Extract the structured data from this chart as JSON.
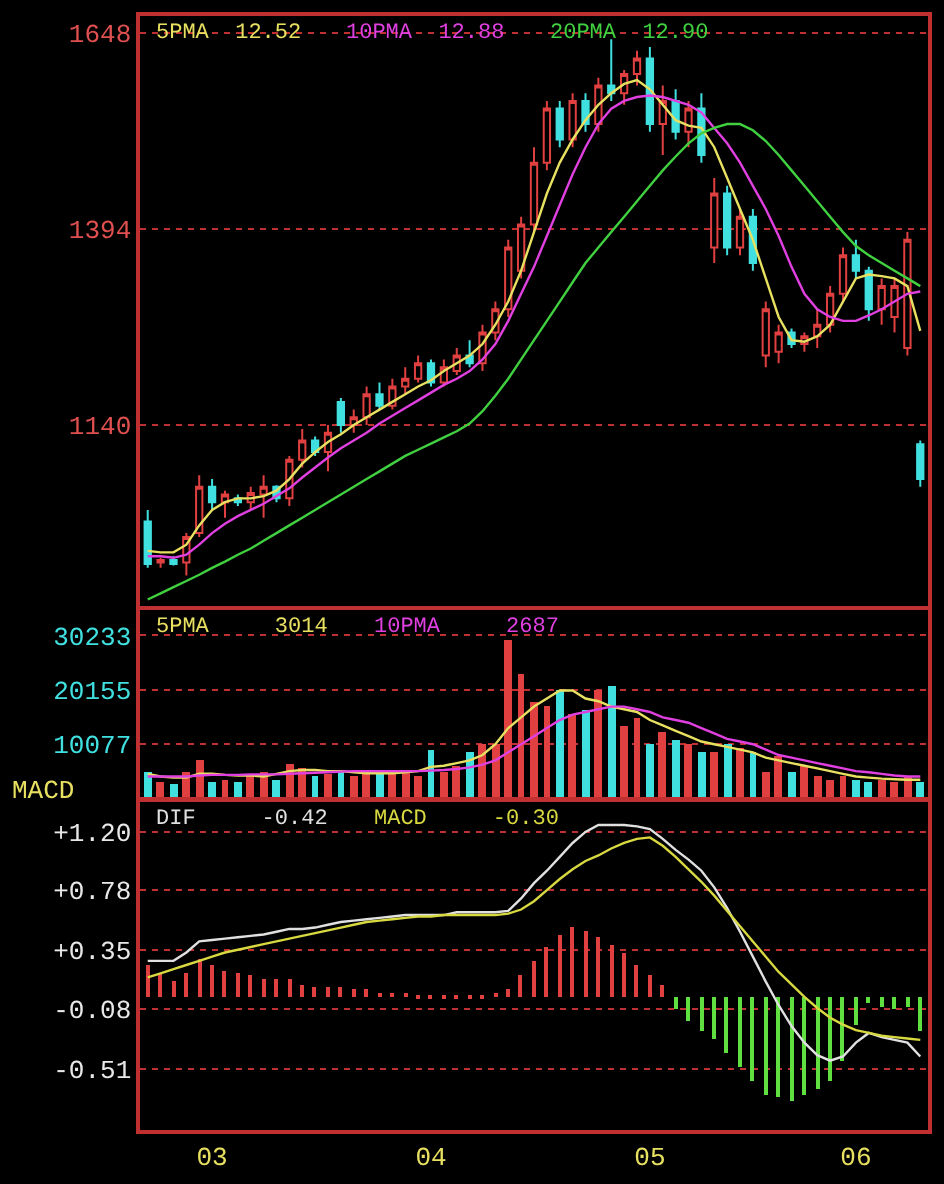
{
  "chart_data": [
    {
      "type": "candlestick",
      "categories": [
        null,
        null,
        null,
        null,
        null,
        "03",
        null,
        null,
        null,
        null,
        null,
        null,
        null,
        null,
        null,
        null,
        null,
        null,
        null,
        null,
        null,
        null,
        "04",
        null,
        null,
        null,
        null,
        null,
        null,
        null,
        null,
        null,
        null,
        null,
        null,
        null,
        null,
        null,
        null,
        "05",
        null,
        null,
        null,
        null,
        null,
        null,
        null,
        null,
        null,
        null,
        null,
        null,
        null,
        null,
        null,
        "06",
        null,
        null,
        null,
        null,
        null
      ],
      "ohlc": [
        [
          1015,
          1030,
          955,
          960
        ],
        [
          962,
          968,
          955,
          965
        ],
        [
          965,
          970,
          958,
          960
        ],
        [
          962,
          1000,
          945,
          995
        ],
        [
          1000,
          1075,
          995,
          1060
        ],
        [
          1060,
          1070,
          1030,
          1040
        ],
        [
          1040,
          1055,
          1020,
          1050
        ],
        [
          1045,
          1050,
          1035,
          1040
        ],
        [
          1040,
          1060,
          1030,
          1052
        ],
        [
          1050,
          1075,
          1020,
          1060
        ],
        [
          1060,
          1062,
          1040,
          1045
        ],
        [
          1045,
          1100,
          1035,
          1095
        ],
        [
          1095,
          1135,
          1085,
          1120
        ],
        [
          1120,
          1125,
          1100,
          1105
        ],
        [
          1105,
          1140,
          1080,
          1130
        ],
        [
          1170,
          1175,
          1130,
          1140
        ],
        [
          1140,
          1160,
          1130,
          1150
        ],
        [
          1150,
          1190,
          1140,
          1180
        ],
        [
          1180,
          1195,
          1160,
          1165
        ],
        [
          1165,
          1200,
          1160,
          1190
        ],
        [
          1190,
          1215,
          1180,
          1200
        ],
        [
          1200,
          1230,
          1195,
          1220
        ],
        [
          1220,
          1225,
          1190,
          1195
        ],
        [
          1195,
          1225,
          1190,
          1215
        ],
        [
          1210,
          1240,
          1205,
          1230
        ],
        [
          1230,
          1250,
          1215,
          1220
        ],
        [
          1220,
          1270,
          1210,
          1260
        ],
        [
          1260,
          1300,
          1250,
          1290
        ],
        [
          1290,
          1380,
          1280,
          1370
        ],
        [
          1340,
          1410,
          1330,
          1400
        ],
        [
          1400,
          1500,
          1390,
          1480
        ],
        [
          1480,
          1560,
          1470,
          1550
        ],
        [
          1550,
          1560,
          1500,
          1510
        ],
        [
          1510,
          1570,
          1500,
          1560
        ],
        [
          1560,
          1570,
          1520,
          1530
        ],
        [
          1530,
          1590,
          1520,
          1580
        ],
        [
          1580,
          1640,
          1560,
          1570
        ],
        [
          1570,
          1600,
          1555,
          1595
        ],
        [
          1595,
          1625,
          1580,
          1615
        ],
        [
          1615,
          1630,
          1520,
          1530
        ],
        [
          1530,
          1580,
          1490,
          1560
        ],
        [
          1560,
          1575,
          1510,
          1520
        ],
        [
          1520,
          1560,
          1500,
          1550
        ],
        [
          1550,
          1570,
          1480,
          1490
        ],
        [
          1370,
          1460,
          1350,
          1440
        ],
        [
          1440,
          1450,
          1360,
          1370
        ],
        [
          1370,
          1420,
          1360,
          1410
        ],
        [
          1410,
          1420,
          1340,
          1350
        ],
        [
          1230,
          1300,
          1215,
          1290
        ],
        [
          1235,
          1270,
          1220,
          1260
        ],
        [
          1260,
          1265,
          1240,
          1245
        ],
        [
          1245,
          1260,
          1235,
          1255
        ],
        [
          1255,
          1290,
          1240,
          1270
        ],
        [
          1270,
          1320,
          1260,
          1310
        ],
        [
          1310,
          1370,
          1300,
          1360
        ],
        [
          1360,
          1380,
          1330,
          1340
        ],
        [
          1340,
          1345,
          1275,
          1290
        ],
        [
          1290,
          1330,
          1270,
          1320
        ],
        [
          1280,
          1330,
          1260,
          1320
        ],
        [
          1240,
          1390,
          1230,
          1380
        ],
        [
          1115,
          1120,
          1060,
          1070
        ]
      ],
      "colors": [
        "#40e0e0",
        "#e04040",
        "#40e0e0",
        "#e04040",
        "#e04040",
        "#40e0e0",
        "#e04040",
        "#40e0e0",
        "#e04040",
        "#e04040",
        "#40e0e0",
        "#e04040",
        "#e04040",
        "#40e0e0",
        "#e04040",
        "#40e0e0",
        "#e04040",
        "#e04040",
        "#40e0e0",
        "#e04040",
        "#e04040",
        "#e04040",
        "#40e0e0",
        "#e04040",
        "#e04040",
        "#40e0e0",
        "#e04040",
        "#e04040",
        "#e04040",
        "#e04040",
        "#e04040",
        "#e04040",
        "#40e0e0",
        "#e04040",
        "#40e0e0",
        "#e04040",
        "#40e0e0",
        "#e04040",
        "#e04040",
        "#40e0e0",
        "#e04040",
        "#40e0e0",
        "#e04040",
        "#40e0e0",
        "#e04040",
        "#40e0e0",
        "#e04040",
        "#40e0e0",
        "#e04040",
        "#e04040",
        "#40e0e0",
        "#e04040",
        "#e04040",
        "#e04040",
        "#e04040",
        "#40e0e0",
        "#40e0e0",
        "#e04040",
        "#e04040",
        "#e04040",
        "#40e0e0"
      ],
      "series": [
        {
          "name": "5PMA  12.52",
          "type": "line",
          "color": "#e8e060",
          "values": [
            977,
            975,
            975,
            985,
            1010,
            1030,
            1040,
            1045,
            1045,
            1048,
            1055,
            1070,
            1090,
            1105,
            1118,
            1128,
            1140,
            1150,
            1160,
            1170,
            1180,
            1190,
            1198,
            1210,
            1220,
            1230,
            1245,
            1270,
            1300,
            1340,
            1390,
            1440,
            1480,
            1510,
            1535,
            1555,
            1570,
            1582,
            1587,
            1575,
            1555,
            1535,
            1528,
            1525,
            1500,
            1460,
            1420,
            1380,
            1330,
            1280,
            1250,
            1248,
            1255,
            1270,
            1300,
            1330,
            1335,
            1333,
            1330,
            1320,
            1262
          ]
        },
        {
          "name": "10PMA  12.88",
          "type": "line",
          "color": "#e040e0",
          "values": [
            970,
            970,
            968,
            972,
            985,
            1000,
            1012,
            1022,
            1030,
            1038,
            1048,
            1058,
            1072,
            1085,
            1098,
            1110,
            1120,
            1130,
            1142,
            1152,
            1162,
            1172,
            1182,
            1192,
            1200,
            1210,
            1225,
            1245,
            1275,
            1310,
            1345,
            1385,
            1425,
            1465,
            1500,
            1530,
            1550,
            1560,
            1565,
            1567,
            1565,
            1560,
            1555,
            1545,
            1525,
            1505,
            1480,
            1450,
            1420,
            1385,
            1345,
            1310,
            1290,
            1280,
            1275,
            1275,
            1282,
            1290,
            1300,
            1310,
            1313
          ]
        },
        {
          "name": "20PMA  12.90",
          "type": "line",
          "color": "#40d040",
          "values": [
            914,
            922,
            930,
            938,
            946,
            955,
            963,
            972,
            980,
            990,
            1000,
            1010,
            1020,
            1030,
            1040,
            1050,
            1060,
            1070,
            1080,
            1090,
            1100,
            1108,
            1116,
            1124,
            1132,
            1142,
            1158,
            1178,
            1200,
            1225,
            1250,
            1275,
            1300,
            1325,
            1350,
            1370,
            1390,
            1410,
            1430,
            1450,
            1470,
            1488,
            1505,
            1518,
            1525,
            1530,
            1530,
            1522,
            1508,
            1490,
            1470,
            1450,
            1430,
            1410,
            1390,
            1372,
            1360,
            1350,
            1340,
            1330,
            1320
          ]
        }
      ],
      "ylim": [
        905,
        1670
      ],
      "yticks": [
        1140,
        1394,
        1648
      ],
      "grid": "y",
      "legend": "top left",
      "tick_labels": "y"
    },
    {
      "type": "bar",
      "categories": [
        null,
        null,
        null,
        null,
        null,
        "03",
        null,
        null,
        null,
        null,
        null,
        null,
        null,
        null,
        null,
        null,
        null,
        null,
        null,
        null,
        null,
        null,
        "04",
        null,
        null,
        null,
        null,
        null,
        null,
        null,
        null,
        null,
        null,
        null,
        null,
        null,
        null,
        null,
        null,
        "05",
        null,
        null,
        null,
        null,
        null,
        null,
        null,
        null,
        null,
        null,
        null,
        null,
        null,
        null,
        null,
        "06",
        null,
        null,
        null,
        null,
        null
      ],
      "values": [
        5000,
        3000,
        2500,
        5000,
        7000,
        3000,
        3500,
        3000,
        4500,
        5000,
        3500,
        6500,
        5500,
        4000,
        4500,
        5000,
        4000,
        4500,
        4500,
        5000,
        5000,
        4000,
        9000,
        5000,
        6000,
        8500,
        10000,
        10000,
        29500,
        23000,
        18000,
        17000,
        20000,
        15500,
        16500,
        20000,
        21000,
        13500,
        15000,
        10000,
        12500,
        11000,
        10000,
        8500,
        8500,
        10000,
        9500,
        8500,
        5000,
        8000,
        5000,
        6000,
        4000,
        3500,
        4000,
        3500,
        3000,
        3500,
        3000,
        4000,
        3000
      ],
      "colors": [
        "#40e0e0",
        "#e04040",
        "#40e0e0",
        "#e04040",
        "#e04040",
        "#40e0e0",
        "#e04040",
        "#40e0e0",
        "#e04040",
        "#e04040",
        "#40e0e0",
        "#e04040",
        "#e04040",
        "#40e0e0",
        "#e04040",
        "#40e0e0",
        "#e04040",
        "#e04040",
        "#40e0e0",
        "#e04040",
        "#e04040",
        "#e04040",
        "#40e0e0",
        "#e04040",
        "#e04040",
        "#40e0e0",
        "#e04040",
        "#e04040",
        "#e04040",
        "#e04040",
        "#e04040",
        "#e04040",
        "#40e0e0",
        "#e04040",
        "#40e0e0",
        "#e04040",
        "#40e0e0",
        "#e04040",
        "#e04040",
        "#40e0e0",
        "#e04040",
        "#40e0e0",
        "#e04040",
        "#40e0e0",
        "#e04040",
        "#40e0e0",
        "#e04040",
        "#40e0e0",
        "#e04040",
        "#e04040",
        "#40e0e0",
        "#e04040",
        "#e04040",
        "#e04040",
        "#e04040",
        "#40e0e0",
        "#40e0e0",
        "#e04040",
        "#e04040",
        "#e04040",
        "#40e0e0"
      ],
      "series": [
        {
          "name": "5PMA     3014",
          "type": "line",
          "color": "#e8e060",
          "values": [
            4500,
            4000,
            3800,
            3800,
            4500,
            4500,
            4300,
            4200,
            4200,
            4000,
            4500,
            5000,
            5200,
            5200,
            5000,
            5000,
            4800,
            4600,
            4600,
            4600,
            4800,
            5000,
            5800,
            6000,
            6500,
            7000,
            8000,
            10000,
            13000,
            15000,
            17000,
            18500,
            20000,
            20000,
            18500,
            18000,
            17000,
            16500,
            16000,
            14500,
            13500,
            12500,
            11500,
            10500,
            10000,
            9500,
            9000,
            8500,
            7500,
            7000,
            6500,
            6000,
            5500,
            5000,
            4500,
            4000,
            3800,
            3600,
            3500,
            3400,
            3400
          ]
        },
        {
          "name": "10PMA     2687",
          "type": "line",
          "color": "#e040e0",
          "values": [
            4000,
            4000,
            4000,
            4000,
            4200,
            4300,
            4300,
            4300,
            4400,
            4400,
            4400,
            4500,
            4600,
            4700,
            4800,
            4900,
            5000,
            5000,
            5000,
            5000,
            5000,
            5000,
            5100,
            5200,
            5400,
            5700,
            6200,
            7000,
            8500,
            10000,
            11500,
            13000,
            14500,
            15500,
            16000,
            16500,
            17000,
            17000,
            16500,
            16000,
            15000,
            14500,
            14000,
            13000,
            12000,
            11000,
            10500,
            10000,
            9000,
            8000,
            7500,
            7000,
            6500,
            6000,
            5500,
            5000,
            4800,
            4500,
            4200,
            4000,
            4000
          ]
        }
      ],
      "ylim": [
        0,
        35000
      ],
      "yticks": [
        10077,
        20155,
        30233
      ],
      "grid": "y",
      "legend": "top left",
      "tick_labels": "y"
    },
    {
      "type": "bar",
      "title": "MACD",
      "categories": [
        null,
        null,
        null,
        null,
        null,
        "03",
        null,
        null,
        null,
        null,
        null,
        null,
        null,
        null,
        null,
        null,
        null,
        null,
        null,
        null,
        null,
        null,
        "04",
        null,
        null,
        null,
        null,
        null,
        null,
        null,
        null,
        null,
        null,
        null,
        null,
        null,
        null,
        null,
        null,
        "05",
        null,
        null,
        null,
        null,
        null,
        null,
        null,
        null,
        null,
        null,
        null,
        null,
        null,
        null,
        null,
        "06",
        null,
        null,
        null,
        null,
        null
      ],
      "values": [
        0.24,
        0.18,
        0.12,
        0.18,
        0.28,
        0.24,
        0.2,
        0.18,
        0.16,
        0.14,
        0.14,
        0.14,
        0.1,
        0.08,
        0.08,
        0.08,
        0.06,
        0.06,
        0.04,
        0.04,
        0.04,
        0.02,
        0.02,
        0.02,
        0.02,
        0.02,
        0.02,
        0.04,
        0.06,
        0.16,
        0.26,
        0.36,
        0.45,
        0.51,
        0.48,
        0.44,
        0.38,
        0.32,
        0.24,
        0.16,
        0.1,
        -0.08,
        -0.16,
        -0.24,
        -0.3,
        -0.4,
        -0.5,
        -0.6,
        -0.7,
        -0.72,
        -0.74,
        -0.7,
        -0.66,
        -0.6,
        -0.46,
        -0.2,
        -0.04,
        -0.06,
        -0.08,
        -0.06,
        -0.24
      ],
      "colors": [
        "#e04040",
        "#e04040",
        "#e04040",
        "#e04040",
        "#e04040",
        "#e04040",
        "#e04040",
        "#e04040",
        "#e04040",
        "#e04040",
        "#e04040",
        "#e04040",
        "#e04040",
        "#e04040",
        "#e04040",
        "#e04040",
        "#e04040",
        "#e04040",
        "#e04040",
        "#e04040",
        "#e04040",
        "#e04040",
        "#e04040",
        "#e04040",
        "#e04040",
        "#e04040",
        "#e04040",
        "#e04040",
        "#e04040",
        "#e04040",
        "#e04040",
        "#e04040",
        "#e04040",
        "#e04040",
        "#e04040",
        "#e04040",
        "#e04040",
        "#e04040",
        "#e04040",
        "#e04040",
        "#e04040",
        "#60e040",
        "#60e040",
        "#60e040",
        "#60e040",
        "#60e040",
        "#60e040",
        "#60e040",
        "#60e040",
        "#60e040",
        "#60e040",
        "#60e040",
        "#60e040",
        "#60e040",
        "#60e040",
        "#60e040",
        "#60e040",
        "#60e040",
        "#60e040",
        "#60e040",
        "#60e040"
      ],
      "series": [
        {
          "name": "DIF     -0.42",
          "type": "line",
          "color": "#e0e0e0",
          "values": [
            0.27,
            0.27,
            0.27,
            0.33,
            0.41,
            0.42,
            0.43,
            0.44,
            0.45,
            0.46,
            0.48,
            0.5,
            0.5,
            0.51,
            0.53,
            0.55,
            0.56,
            0.57,
            0.58,
            0.59,
            0.6,
            0.6,
            0.6,
            0.6,
            0.62,
            0.62,
            0.62,
            0.62,
            0.63,
            0.72,
            0.83,
            0.92,
            1.02,
            1.12,
            1.2,
            1.25,
            1.25,
            1.25,
            1.24,
            1.22,
            1.15,
            1.07,
            1.0,
            0.92,
            0.8,
            0.65,
            0.48,
            0.3,
            0.12,
            -0.05,
            -0.2,
            -0.32,
            -0.41,
            -0.45,
            -0.42,
            -0.32,
            -0.25,
            -0.28,
            -0.3,
            -0.32,
            -0.42
          ]
        },
        {
          "name": "MACD     -0.30",
          "type": "line",
          "color": "#d8d840",
          "values": [
            0.15,
            0.18,
            0.21,
            0.24,
            0.27,
            0.3,
            0.33,
            0.35,
            0.37,
            0.39,
            0.41,
            0.43,
            0.45,
            0.47,
            0.49,
            0.51,
            0.53,
            0.55,
            0.56,
            0.57,
            0.58,
            0.59,
            0.59,
            0.6,
            0.6,
            0.6,
            0.6,
            0.6,
            0.61,
            0.64,
            0.7,
            0.78,
            0.86,
            0.93,
            0.99,
            1.03,
            1.08,
            1.12,
            1.15,
            1.16,
            1.1,
            1.02,
            0.93,
            0.84,
            0.74,
            0.63,
            0.52,
            0.41,
            0.3,
            0.19,
            0.1,
            0.01,
            -0.07,
            -0.14,
            -0.19,
            -0.23,
            -0.25,
            -0.27,
            -0.28,
            -0.29,
            -0.3
          ]
        }
      ],
      "ylim": [
        -0.95,
        1.42
      ],
      "yticks": [
        {
          "value": 1.2,
          "label": "+1.20"
        },
        {
          "value": 0.78,
          "label": "+0.78"
        },
        {
          "value": 0.35,
          "label": "+0.35"
        },
        -0.08,
        -0.51
      ],
      "grid": "y",
      "legend": "top left"
    }
  ]
}
